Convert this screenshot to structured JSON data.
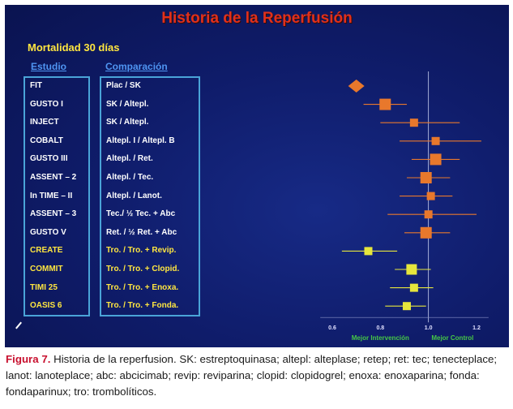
{
  "slide": {
    "title": "Historia de la Reperfusión",
    "subtitle": "Mortalidad 30 días",
    "study_header": "Estudio",
    "comparison_header": "Comparación"
  },
  "caption": {
    "figure_label": "Figura 7.",
    "text": "Historia de la reperfusion. SK: estreptoquinasa; altepl: alteplase; retep; ret: tec; tenecteplace; lanot: lanoteplace; abc: abcicimab; revip: reviparina; clopid: clopidogrel; enoxa: enoxaparina; fonda: fondaparinux; tro: trombolíticos."
  },
  "colors": {
    "background": "#0f1c6a",
    "title": "#e0301c",
    "yellow_text": "#ffe640",
    "header_blue": "#4f95f2",
    "box_border": "#4aa4d8",
    "marker_orange": "#e8782c",
    "marker_yellow": "#e6e63c",
    "axis_green": "#46c846"
  },
  "chart_data": {
    "type": "forest",
    "title": "Historia de la Reperfusión",
    "subtitle": "Mortalidad 30 días",
    "x_ticks": [
      0.6,
      0.8,
      1.0,
      1.2
    ],
    "xlim": [
      0.55,
      1.25
    ],
    "reference_line": 1.0,
    "axis_left_label": "Mejor Intervención",
    "axis_right_label": "Mejor Control",
    "rows": [
      {
        "study": "FIT",
        "comparison": "Plac / SK",
        "estimate": 0.7,
        "ci": [
          0.68,
          0.72
        ],
        "marker": "diamond",
        "color": "orange",
        "highlight": false
      },
      {
        "study": "GUSTO I",
        "comparison": "SK / Altepl.",
        "estimate": 0.82,
        "ci": [
          0.73,
          0.91
        ],
        "marker": "square",
        "color": "orange",
        "highlight": false
      },
      {
        "study": "INJECT",
        "comparison": "SK / Altepl.",
        "estimate": 0.94,
        "ci": [
          0.8,
          1.13
        ],
        "marker": "square",
        "color": "orange",
        "highlight": false
      },
      {
        "study": "COBALT",
        "comparison": "Altepl. I / Altepl. B",
        "estimate": 1.03,
        "ci": [
          0.88,
          1.22
        ],
        "marker": "square",
        "color": "orange",
        "highlight": false
      },
      {
        "study": "GUSTO III",
        "comparison": "Altepl. / Ret.",
        "estimate": 1.03,
        "ci": [
          0.93,
          1.13
        ],
        "marker": "square",
        "color": "orange",
        "highlight": false
      },
      {
        "study": "ASSENT – 2",
        "comparison": "Altepl. / Tec.",
        "estimate": 0.99,
        "ci": [
          0.91,
          1.09
        ],
        "marker": "square",
        "color": "orange",
        "highlight": false
      },
      {
        "study": "In TIME – II",
        "comparison": "Altepl. / Lanot.",
        "estimate": 1.01,
        "ci": [
          0.88,
          1.1
        ],
        "marker": "square",
        "color": "orange",
        "highlight": false
      },
      {
        "study": "ASSENT – 3",
        "comparison": "Tec./ ½ Tec. + Abc",
        "estimate": 1.0,
        "ci": [
          0.83,
          1.2
        ],
        "marker": "square",
        "color": "orange",
        "highlight": false
      },
      {
        "study": "GUSTO V",
        "comparison": "Ret. / ½ Ret. + Abc",
        "estimate": 0.99,
        "ci": [
          0.9,
          1.09
        ],
        "marker": "square",
        "color": "orange",
        "highlight": false
      },
      {
        "study": "CREATE",
        "comparison": "Tro. / Tro. + Revip.",
        "estimate": 0.75,
        "ci": [
          0.64,
          0.87
        ],
        "marker": "square",
        "color": "yellow",
        "highlight": true
      },
      {
        "study": "COMMIT",
        "comparison": "Tro. / Tro. + Clopid.",
        "estimate": 0.93,
        "ci": [
          0.86,
          1.01
        ],
        "marker": "square",
        "color": "yellow",
        "highlight": true
      },
      {
        "study": "TIMI 25",
        "comparison": "Tro. / Tro. + Enoxa.",
        "estimate": 0.94,
        "ci": [
          0.84,
          1.02
        ],
        "marker": "square",
        "color": "yellow",
        "highlight": true
      },
      {
        "study": "OASIS 6",
        "comparison": "Tro. / Tro. + Fonda.",
        "estimate": 0.91,
        "ci": [
          0.82,
          0.99
        ],
        "marker": "square",
        "color": "yellow",
        "highlight": true
      }
    ]
  }
}
